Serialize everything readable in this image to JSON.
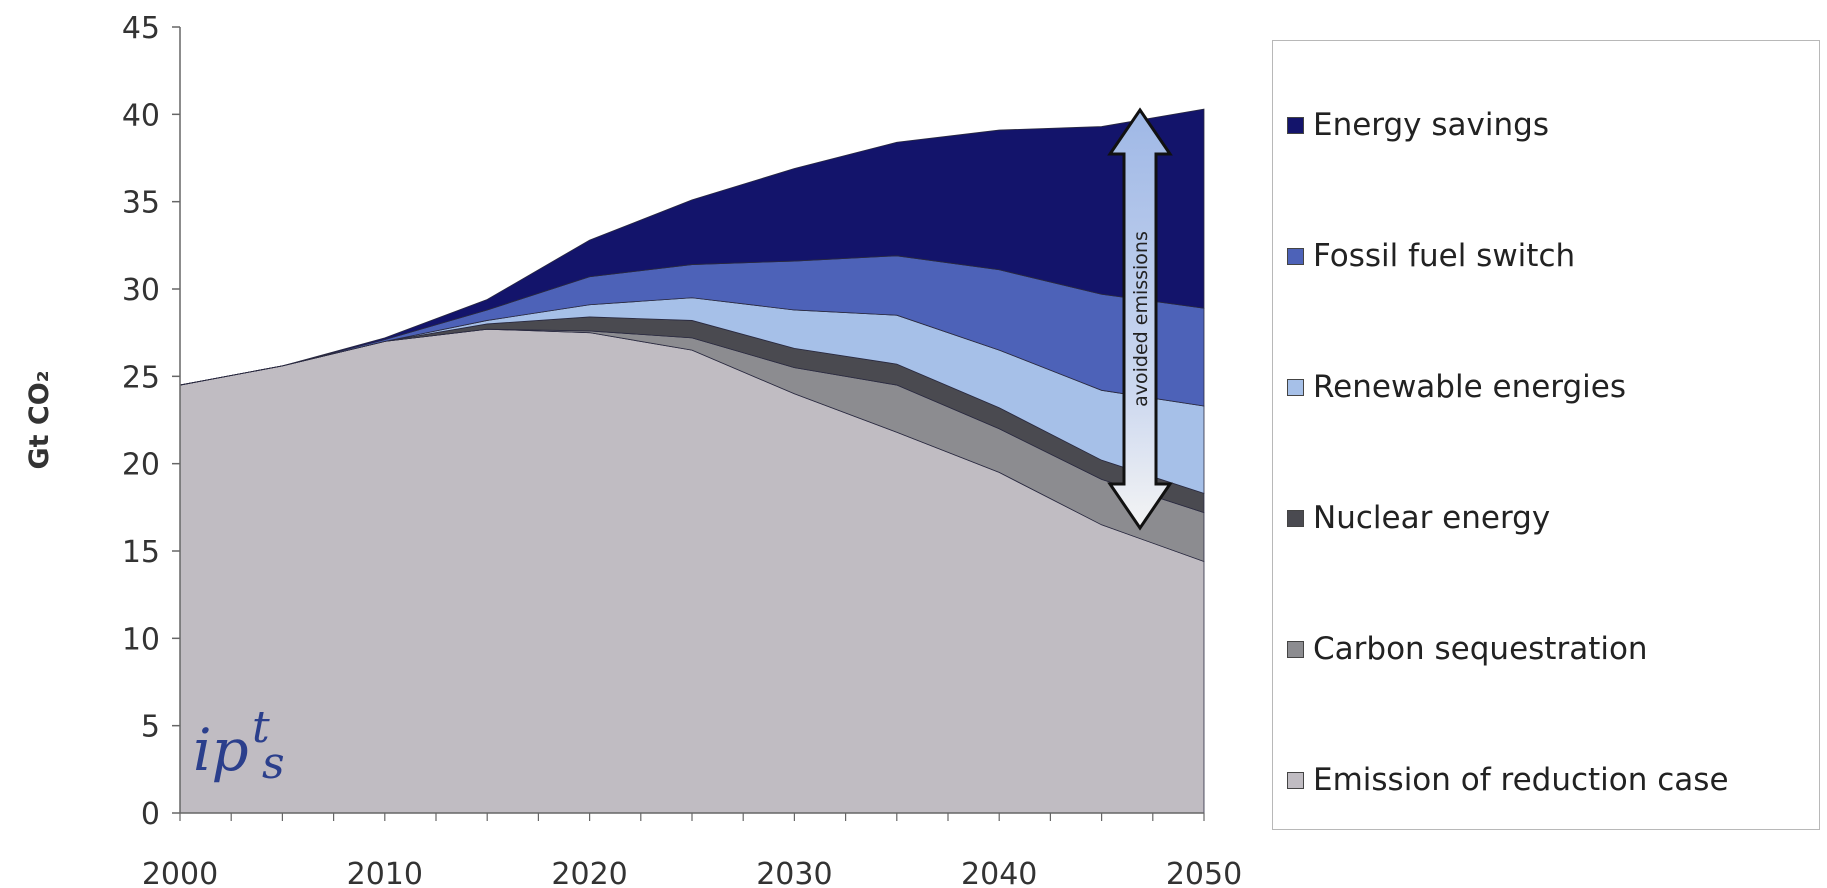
{
  "chart_data": {
    "type": "area",
    "stacked": true,
    "ylabel": "Gt CO₂",
    "xlim": [
      2000,
      2050
    ],
    "ylim": [
      0,
      45
    ],
    "y_ticks": [
      0,
      5,
      10,
      15,
      20,
      25,
      30,
      35,
      40,
      45
    ],
    "x_tick_labels": [
      2000,
      2010,
      2020,
      2030,
      2040,
      2050
    ],
    "x": [
      2000,
      2005,
      2010,
      2015,
      2020,
      2025,
      2030,
      2035,
      2040,
      2045,
      2050
    ],
    "series": [
      {
        "name": "Emission of reduction case",
        "color": "#c0bcc2",
        "values": [
          24.5,
          25.6,
          27.0,
          27.7,
          27.5,
          26.5,
          24.0,
          21.8,
          19.5,
          16.5,
          14.4
        ]
      },
      {
        "name": "Carbon sequestration",
        "color": "#8c8c90",
        "values": [
          0,
          0,
          0,
          0,
          0.1,
          0.7,
          1.5,
          2.7,
          2.5,
          2.6,
          2.8
        ]
      },
      {
        "name": "Nuclear energy",
        "color": "#4a4a50",
        "values": [
          0,
          0,
          0,
          0.3,
          0.8,
          1.0,
          1.1,
          1.2,
          1.2,
          1.1,
          1.1
        ]
      },
      {
        "name": "Renewable energies",
        "color": "#a6c0e8",
        "values": [
          0,
          0,
          0,
          0.2,
          0.7,
          1.3,
          2.2,
          2.8,
          3.3,
          4.0,
          5.0
        ]
      },
      {
        "name": "Fossil fuel switch",
        "color": "#4d62b8",
        "values": [
          0,
          0,
          0.1,
          0.6,
          1.6,
          1.9,
          2.8,
          3.4,
          4.6,
          5.5,
          5.6
        ]
      },
      {
        "name": "Energy savings",
        "color": "#13146b",
        "values": [
          0,
          0,
          0.1,
          0.6,
          2.1,
          3.7,
          5.3,
          6.5,
          8.0,
          9.6,
          11.4
        ]
      }
    ],
    "annotation": "avoided emissions",
    "legend_position": "right"
  },
  "logo": {
    "text": "ipts"
  }
}
